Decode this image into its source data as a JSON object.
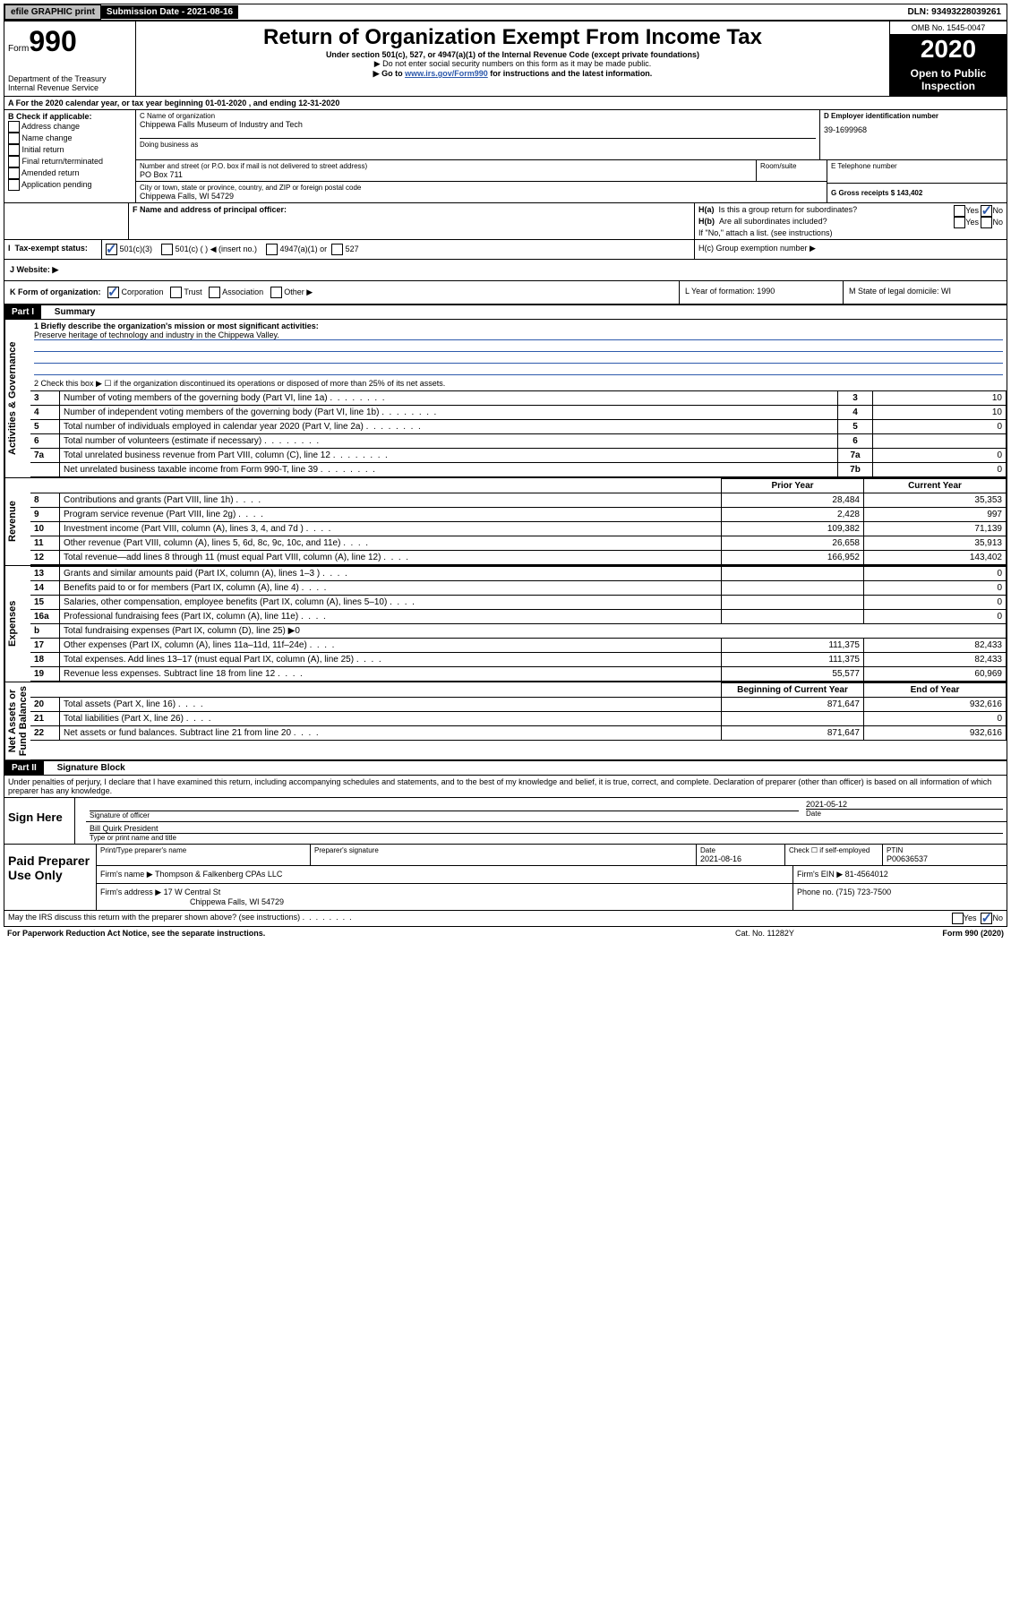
{
  "topbar": {
    "efile": "efile GRAPHIC print",
    "submission_label": "Submission Date - 2021-08-16",
    "dln_label": "DLN: 93493228039261"
  },
  "header": {
    "form_label": "Form",
    "form_number": "990",
    "title": "Return of Organization Exempt From Income Tax",
    "subtitle": "Under section 501(c), 527, or 4947(a)(1) of the Internal Revenue Code (except private foundations)",
    "note1": "▶ Do not enter social security numbers on this form as it may be made public.",
    "note2_pre": "▶ Go to ",
    "note2_link": "www.irs.gov/Form990",
    "note2_post": " for instructions and the latest information.",
    "dept": "Department of the Treasury\nInternal Revenue Service",
    "omb": "OMB No. 1545-0047",
    "year": "2020",
    "inspect": "Open to Public Inspection"
  },
  "sectionA": {
    "a_line": "A For the 2020 calendar year, or tax year beginning 01-01-2020    , and ending 12-31-2020",
    "b_label": "B Check if applicable:",
    "b_opts": [
      "Address change",
      "Name change",
      "Initial return",
      "Final return/terminated",
      "Amended return",
      "Application pending"
    ],
    "c_label": "C Name of organization",
    "c_name": "Chippewa Falls Museum of Industry and Tech",
    "dba_label": "Doing business as",
    "addr_label": "Number and street (or P.O. box if mail is not delivered to street address)",
    "room_label": "Room/suite",
    "addr": "PO Box 711",
    "city_label": "City or town, state or province, country, and ZIP or foreign postal code",
    "city": "Chippewa Falls, WI  54729",
    "d_label": "D Employer identification number",
    "d_ein": "39-1699968",
    "e_label": "E Telephone number",
    "g_label": "G Gross receipts $ 143,402",
    "f_label": "F Name and address of principal officer:",
    "ha_label": "H(a)  Is this a group return for subordinates?",
    "hb_label": "H(b)  Are all subordinates included?",
    "hb_note": "If \"No,\" attach a list. (see instructions)",
    "hc_label": "H(c)  Group exemption number ▶",
    "yes": "Yes",
    "no": "No",
    "i_label": "Tax-exempt status:",
    "i_501c3": "501(c)(3)",
    "i_501c": "501(c) (  ) ◀ (insert no.)",
    "i_4947": "4947(a)(1) or",
    "i_527": "527",
    "j_label": "J   Website: ▶",
    "k_label": "K Form of organization:",
    "k_corp": "Corporation",
    "k_trust": "Trust",
    "k_assoc": "Association",
    "k_other": "Other ▶",
    "l_label": "L Year of formation: 1990",
    "m_label": "M State of legal domicile: WI"
  },
  "part1": {
    "hdr": "Part I",
    "title": "Summary",
    "side_act": "Activities & Governance",
    "side_rev": "Revenue",
    "side_exp": "Expenses",
    "side_net": "Net Assets or\nFund Balances",
    "q1": "1  Briefly describe the organization's mission or most significant activities:",
    "q1a": "Preserve heritage of technology and industry in the Chippewa Valley.",
    "q2": "2   Check this box ▶ ☐  if the organization discontinued its operations or disposed of more than 25% of its net assets.",
    "rows_gov": [
      {
        "n": "3",
        "t": "Number of voting members of the governing body (Part VI, line 1a)",
        "c": "3",
        "v": "10"
      },
      {
        "n": "4",
        "t": "Number of independent voting members of the governing body (Part VI, line 1b)",
        "c": "4",
        "v": "10"
      },
      {
        "n": "5",
        "t": "Total number of individuals employed in calendar year 2020 (Part V, line 2a)",
        "c": "5",
        "v": "0"
      },
      {
        "n": "6",
        "t": "Total number of volunteers (estimate if necessary)",
        "c": "6",
        "v": ""
      },
      {
        "n": "7a",
        "t": "Total unrelated business revenue from Part VIII, column (C), line 12",
        "c": "7a",
        "v": "0"
      },
      {
        "n": "",
        "t": "Net unrelated business taxable income from Form 990-T, line 39",
        "c": "7b",
        "v": "0"
      }
    ],
    "col_prior": "Prior Year",
    "col_curr": "Current Year",
    "col_beg": "Beginning of Current Year",
    "col_end": "End of Year",
    "rows_rev": [
      {
        "n": "8",
        "t": "Contributions and grants (Part VIII, line 1h)",
        "p": "28,484",
        "c": "35,353"
      },
      {
        "n": "9",
        "t": "Program service revenue (Part VIII, line 2g)",
        "p": "2,428",
        "c": "997"
      },
      {
        "n": "10",
        "t": "Investment income (Part VIII, column (A), lines 3, 4, and 7d )",
        "p": "109,382",
        "c": "71,139"
      },
      {
        "n": "11",
        "t": "Other revenue (Part VIII, column (A), lines 5, 6d, 8c, 9c, 10c, and 11e)",
        "p": "26,658",
        "c": "35,913"
      },
      {
        "n": "12",
        "t": "Total revenue—add lines 8 through 11 (must equal Part VIII, column (A), line 12)",
        "p": "166,952",
        "c": "143,402"
      }
    ],
    "rows_exp": [
      {
        "n": "13",
        "t": "Grants and similar amounts paid (Part IX, column (A), lines 1–3 )",
        "p": "",
        "c": "0"
      },
      {
        "n": "14",
        "t": "Benefits paid to or for members (Part IX, column (A), line 4)",
        "p": "",
        "c": "0"
      },
      {
        "n": "15",
        "t": "Salaries, other compensation, employee benefits (Part IX, column (A), lines 5–10)",
        "p": "",
        "c": "0"
      },
      {
        "n": "16a",
        "t": "Professional fundraising fees (Part IX, column (A), line 11e)",
        "p": "",
        "c": "0"
      },
      {
        "n": "b",
        "t": "Total fundraising expenses (Part IX, column (D), line 25) ▶0",
        "p": null,
        "c": null
      },
      {
        "n": "17",
        "t": "Other expenses (Part IX, column (A), lines 11a–11d, 11f–24e)",
        "p": "111,375",
        "c": "82,433"
      },
      {
        "n": "18",
        "t": "Total expenses. Add lines 13–17 (must equal Part IX, column (A), line 25)",
        "p": "111,375",
        "c": "82,433"
      },
      {
        "n": "19",
        "t": "Revenue less expenses. Subtract line 18 from line 12",
        "p": "55,577",
        "c": "60,969"
      }
    ],
    "rows_net": [
      {
        "n": "20",
        "t": "Total assets (Part X, line 16)",
        "p": "871,647",
        "c": "932,616"
      },
      {
        "n": "21",
        "t": "Total liabilities (Part X, line 26)",
        "p": "",
        "c": "0"
      },
      {
        "n": "22",
        "t": "Net assets or fund balances. Subtract line 21 from line 20",
        "p": "871,647",
        "c": "932,616"
      }
    ]
  },
  "part2": {
    "hdr": "Part II",
    "title": "Signature Block",
    "decl": "Under penalties of perjury, I declare that I have examined this return, including accompanying schedules and statements, and to the best of my knowledge and belief, it is true, correct, and complete. Declaration of preparer (other than officer) is based on all information of which preparer has any knowledge.",
    "sign_here": "Sign Here",
    "sig_officer": "Signature of officer",
    "sig_date": "2021-05-12",
    "date_label": "Date",
    "name_title": "Bill Quirk President",
    "name_title_label": "Type or print name and title",
    "paid": "Paid Preparer Use Only",
    "prep_name_label": "Print/Type preparer's name",
    "prep_sig_label": "Preparer's signature",
    "prep_date_label": "Date",
    "prep_date": "2021-08-16",
    "check_self": "Check ☐ if self-employed",
    "ptin_label": "PTIN",
    "ptin": "P00636537",
    "firm_name_label": "Firm's name    ▶",
    "firm_name": "Thompson & Falkenberg CPAs LLC",
    "firm_ein_label": "Firm's EIN ▶",
    "firm_ein": "81-4564012",
    "firm_addr_label": "Firm's address ▶",
    "firm_addr1": "17 W Central St",
    "firm_addr2": "Chippewa Falls, WI  54729",
    "phone_label": "Phone no. (715) 723-7500",
    "discuss": "May the IRS discuss this return with the preparer shown above? (see instructions)",
    "paperwork": "For Paperwork Reduction Act Notice, see the separate instructions.",
    "cat": "Cat. No. 11282Y",
    "form_foot": "Form 990 (2020)"
  },
  "colors": {
    "link": "#2e5aac",
    "hdr_bg": "#000000"
  }
}
